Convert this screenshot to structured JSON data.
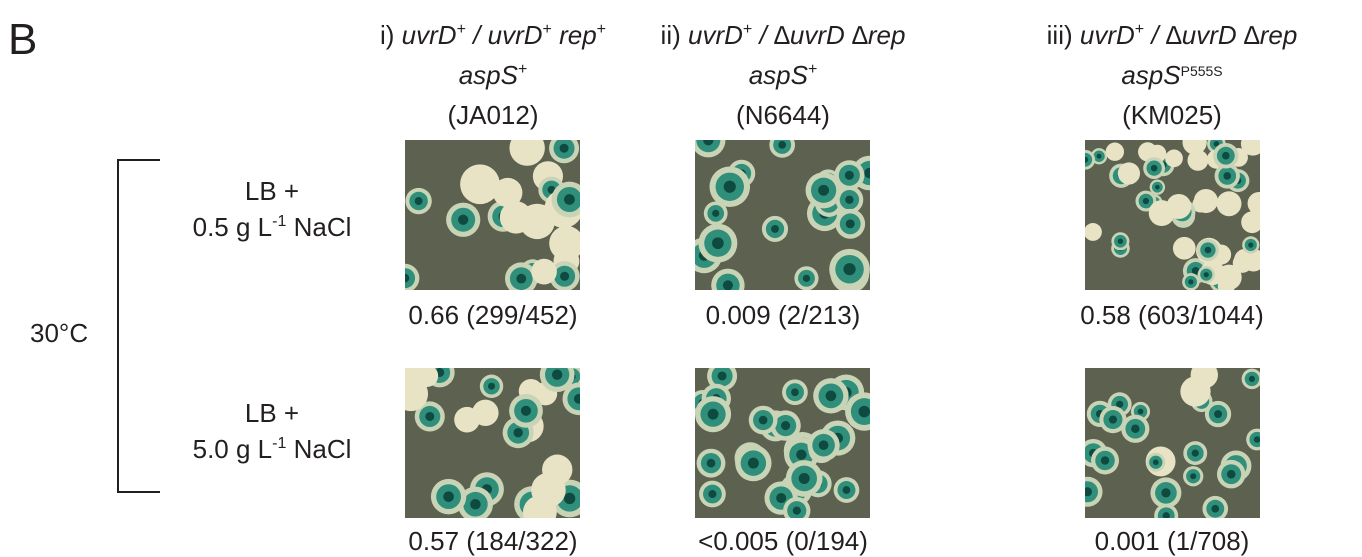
{
  "panel_label": "B",
  "columns": [
    {
      "prefix": "i)",
      "gene1": "uvrD",
      "sup1": "+",
      "sep": "/",
      "gene2": "uvrD",
      "sup2": "+",
      "gene3": "rep",
      "sup3": "+",
      "line2_gene": "aspS",
      "line2_sup": "+",
      "strain": "(JA012)"
    },
    {
      "prefix": "ii)",
      "gene1": "uvrD",
      "sup1": "+",
      "sep": "/",
      "gene2": "∆uvrD ∆rep",
      "line2_gene": "aspS",
      "line2_sup": "+",
      "strain": "(N6644)"
    },
    {
      "prefix": "iii)",
      "gene1": "uvrD",
      "sup1": "+",
      "sep": "/",
      "gene2": "∆uvrD ∆rep",
      "line2_gene": "aspS",
      "line2_sup": "P555S",
      "strain": "(KM025)"
    }
  ],
  "temperature": "30°C",
  "rows": [
    {
      "line1": "LB +",
      "conc": "0.5 g L",
      "exp": "-1",
      "salt": "NaCl",
      "results": [
        "0.66 (299/452)",
        "0.009 (2/213)",
        "0.58 (603/1044)"
      ]
    },
    {
      "line1": "LB +",
      "conc": "5.0 g L",
      "exp": "-1",
      "salt": "NaCl",
      "results": [
        "0.57 (184/322)",
        "<0.005 (0/194)",
        "0.001 (1/708)"
      ]
    }
  ]
}
